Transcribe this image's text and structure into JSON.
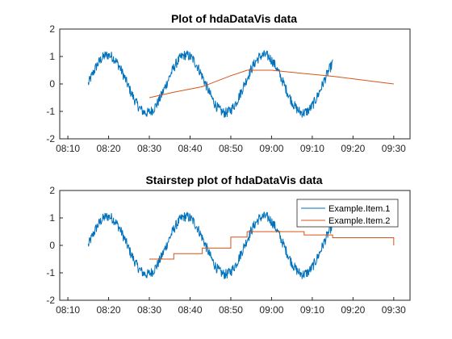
{
  "chart_data": [
    {
      "type": "line",
      "title": "Plot of hdaDataVis data",
      "xlabel": "",
      "ylabel": "",
      "xlim": [
        "08:08",
        "09:34"
      ],
      "ylim": [
        -2,
        2
      ],
      "xticks": [
        "08:10",
        "08:20",
        "08:30",
        "08:40",
        "08:50",
        "09:00",
        "09:10",
        "09:20",
        "09:30"
      ],
      "yticks": [
        "2",
        "1",
        "0",
        "-1",
        "-2"
      ],
      "grid": false,
      "colors": [
        "#0072bd",
        "#d95319"
      ],
      "series": [
        {
          "name": "Example.Item.1",
          "description": "noisy sine wave, period about 19 minutes, amplitude about 1, from 08:15 to 09:15",
          "x_start": "08:15",
          "x_end": "09:15",
          "period_minutes": 19.2,
          "amplitude": 1.05,
          "approx_peaks": [
            [
              "08:19",
              1.1
            ],
            [
              "08:38",
              1.05
            ],
            [
              "08:57",
              1.05
            ],
            [
              "09:12",
              1.2
            ]
          ],
          "approx_troughs": [
            [
              "08:27",
              -1.05
            ],
            [
              "08:47",
              -1.05
            ],
            [
              "09:06",
              -1.05
            ]
          ]
        },
        {
          "name": "Example.Item.2",
          "x": [
            "08:30",
            "08:36",
            "08:43",
            "08:50",
            "08:54",
            "09:00",
            "09:08",
            "09:15",
            "09:30"
          ],
          "values": [
            -0.5,
            -0.3,
            -0.1,
            0.3,
            0.5,
            0.5,
            0.38,
            0.28,
            0.0
          ]
        }
      ]
    },
    {
      "type": "line",
      "subtype": "stairstep",
      "title": "Stairstep plot of hdaDataVis data",
      "xlabel": "",
      "ylabel": "",
      "xlim": [
        "08:08",
        "09:34"
      ],
      "ylim": [
        -2,
        2
      ],
      "xticks": [
        "08:10",
        "08:20",
        "08:30",
        "08:40",
        "08:50",
        "09:00",
        "09:10",
        "09:20",
        "09:30"
      ],
      "yticks": [
        "2",
        "1",
        "0",
        "-1",
        "-2"
      ],
      "grid": false,
      "legend": {
        "position": "top-right",
        "entries": [
          "Example.Item.1",
          "Example.Item.2"
        ]
      },
      "colors": [
        "#0072bd",
        "#d95319"
      ],
      "series": [
        {
          "name": "Example.Item.1",
          "description": "same noisy sine wave as upper plot"
        },
        {
          "name": "Example.Item.2",
          "x": [
            "08:30",
            "08:36",
            "08:43",
            "08:50",
            "08:54",
            "09:00",
            "09:08",
            "09:15",
            "09:30"
          ],
          "values": [
            -0.5,
            -0.3,
            -0.1,
            0.3,
            0.5,
            0.5,
            0.38,
            0.28,
            0.0
          ]
        }
      ]
    }
  ]
}
